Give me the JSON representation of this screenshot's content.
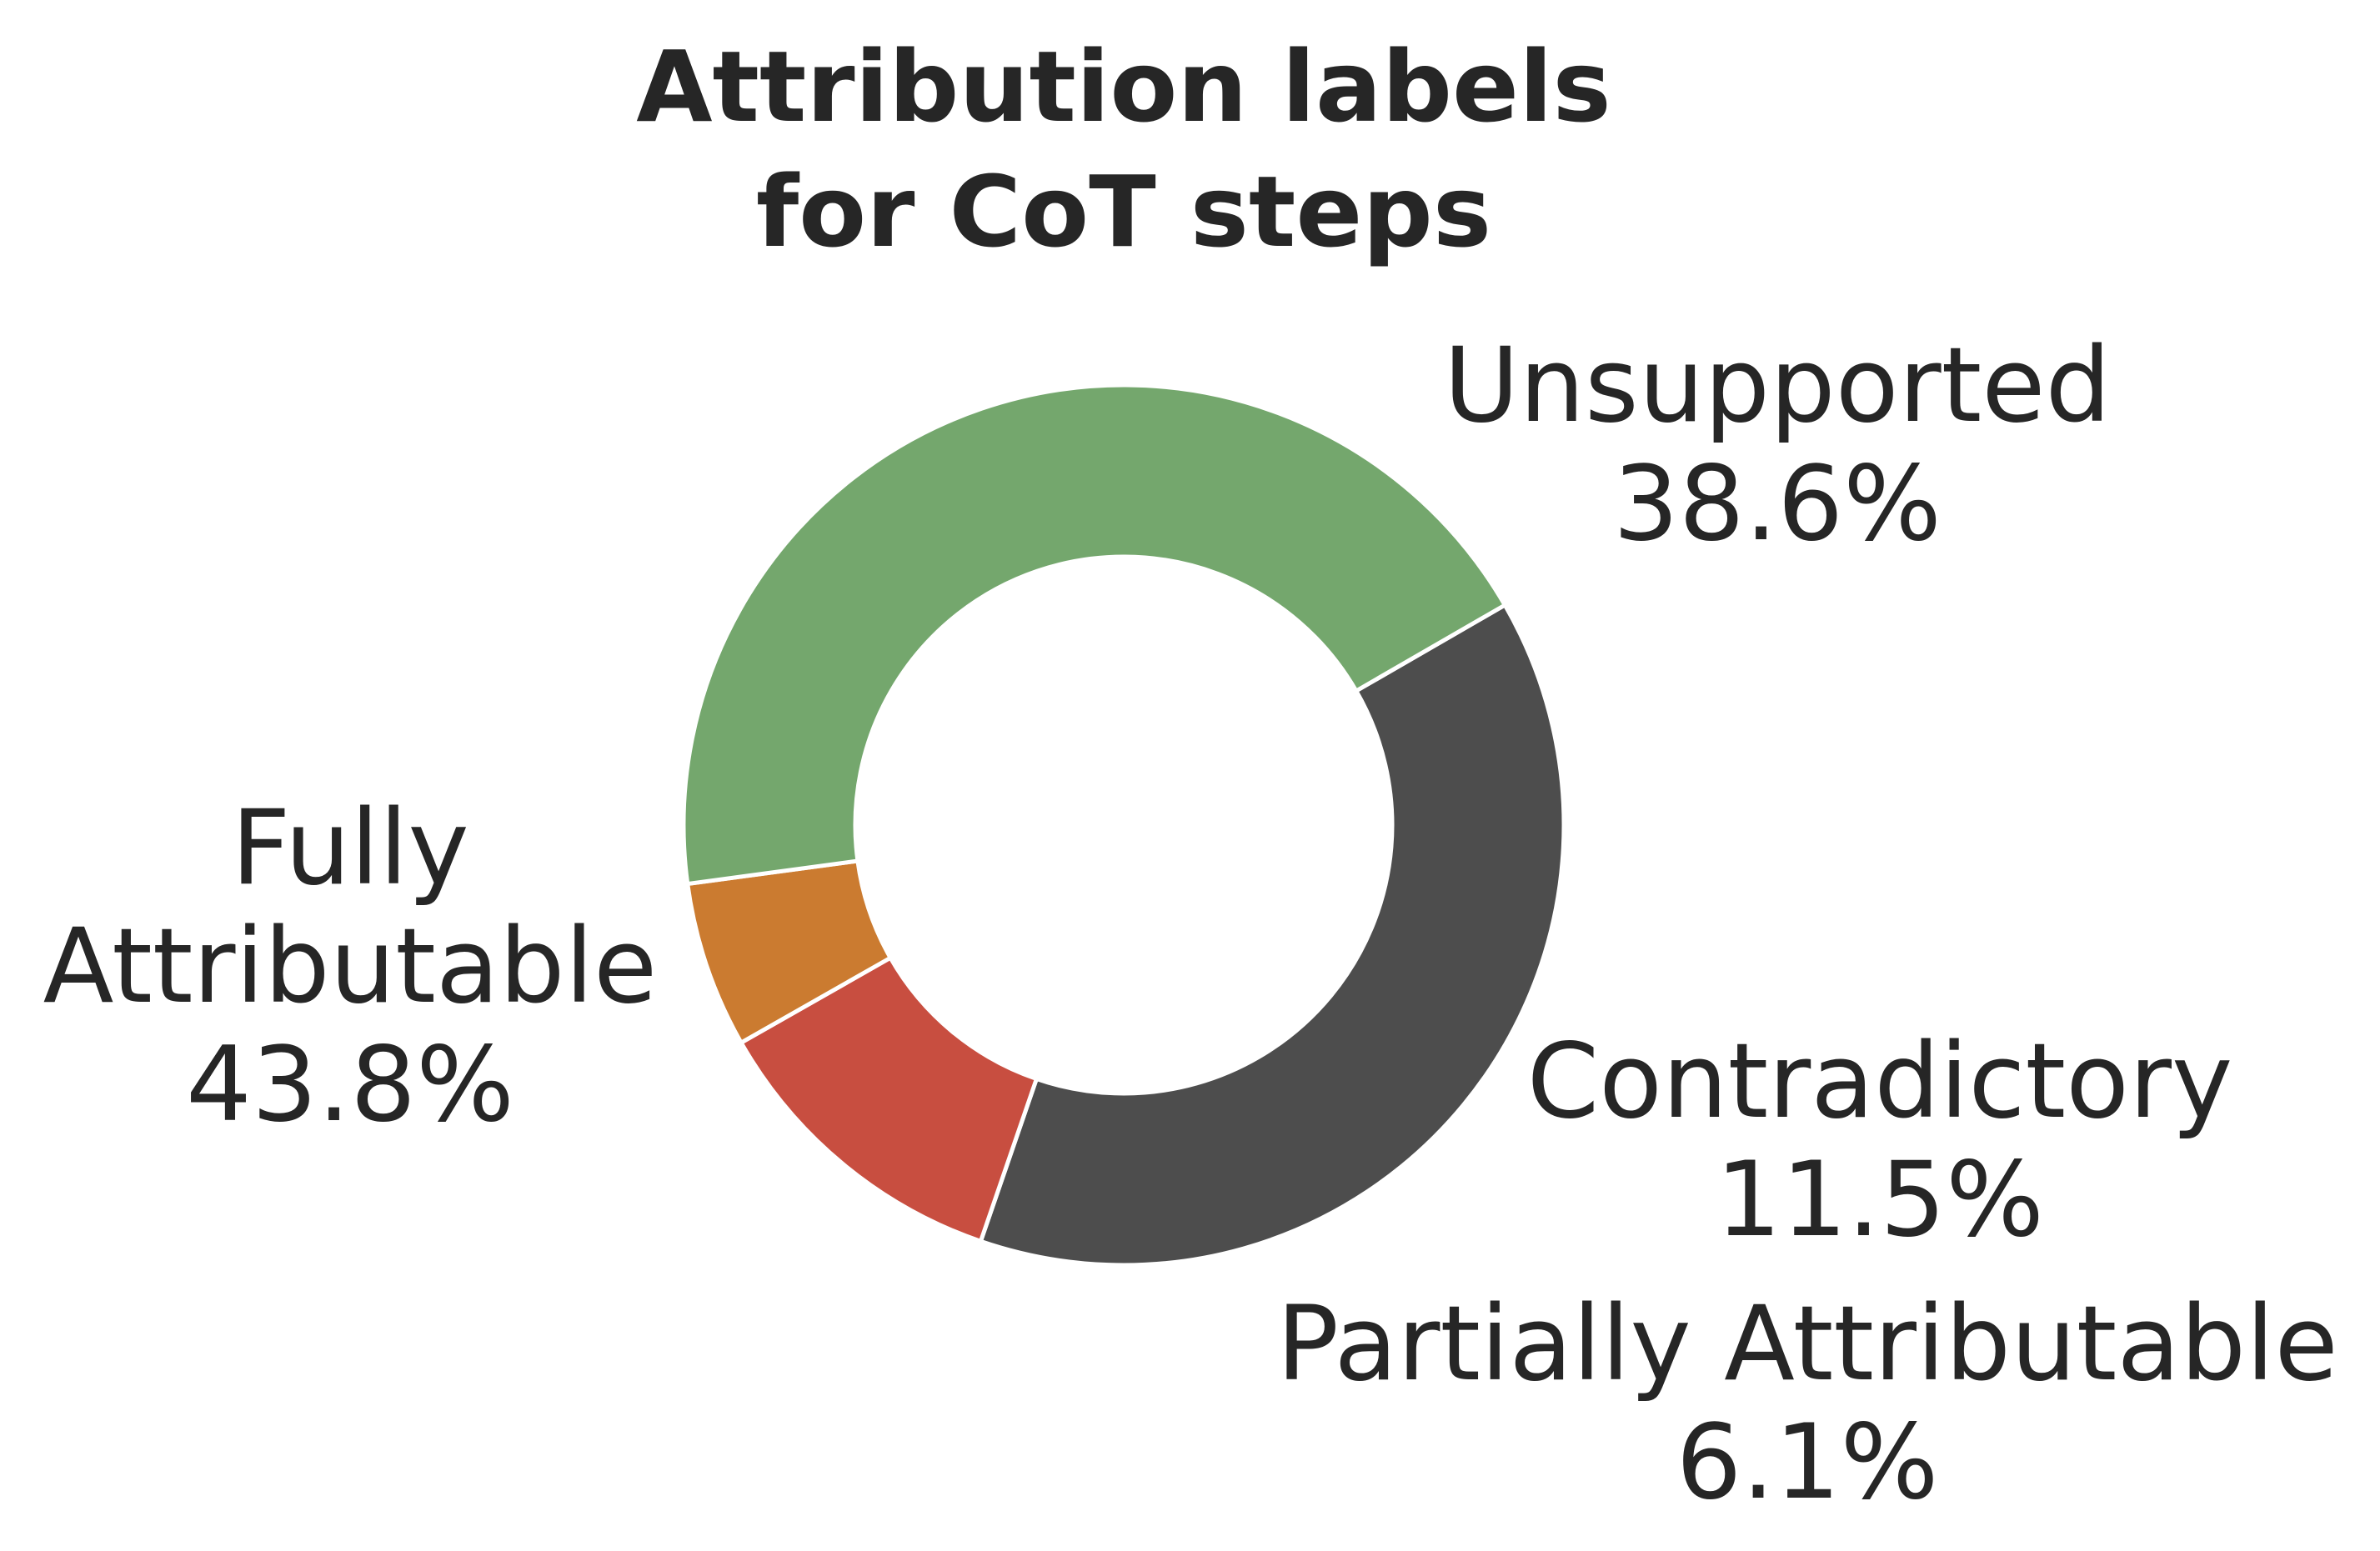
{
  "chart_data": {
    "type": "pie",
    "style": "donut",
    "title_lines": [
      "Attribution labels",
      "for CoT steps"
    ],
    "start_angle_deg": 30,
    "direction": "clockwise",
    "slices": [
      {
        "label_lines": [
          "Unsupported"
        ],
        "value": 38.6,
        "pct_label": "38.6%",
        "color": "#4d4d4d"
      },
      {
        "label_lines": [
          "Contradictory"
        ],
        "value": 11.5,
        "pct_label": "11.5%",
        "color": "#c84e40"
      },
      {
        "label_lines": [
          "Partially Attributable"
        ],
        "value": 6.1,
        "pct_label": "6.1%",
        "color": "#cb7b30"
      },
      {
        "label_lines": [
          "Fully",
          "Attributable"
        ],
        "value": 43.8,
        "pct_label": "43.8%",
        "color": "#74a76d"
      }
    ],
    "legend": "none",
    "grid": false
  }
}
